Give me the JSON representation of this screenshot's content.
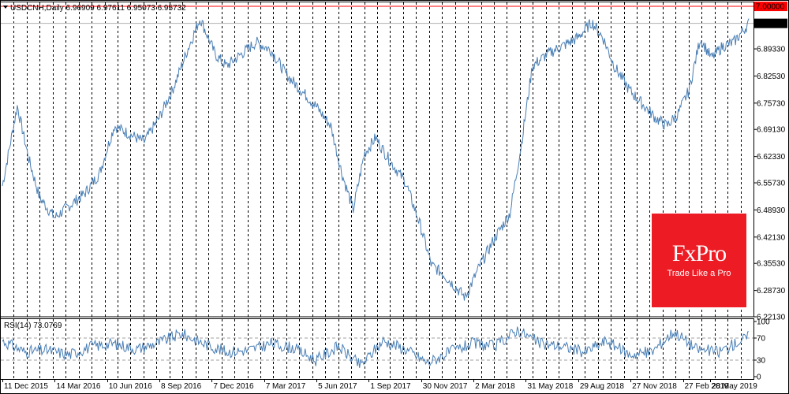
{
  "chart_data": [
    {
      "type": "line",
      "title": "USDCNH,Daily  6.96909 6.97611 6.95073 6.95732",
      "symbol": "USDCNH,Daily",
      "ohlc": [
        "6.96909",
        "6.97611",
        "6.95073",
        "6.95732"
      ],
      "line_color": "#4a7fb5",
      "ylim": [
        6.2213,
        7.01
      ],
      "y_ticks": [
        "6.95732",
        "6.89330",
        "6.82530",
        "6.75730",
        "6.69130",
        "6.62330",
        "6.55730",
        "6.48930",
        "6.42130",
        "6.35530",
        "6.28730",
        "6.22130"
      ],
      "current_price": "6.95732",
      "level_line": {
        "value": 7.0,
        "label": "7.00000",
        "color": "#ff0000"
      },
      "x_tick_labels": [
        "11 Dec 2015",
        "14 Mar 2016",
        "10 Jun 2016",
        "8 Sep 2016",
        "7 Dec 2016",
        "7 Mar 2017",
        "5 Jun 2017",
        "1 Sep 2017",
        "30 Nov 2017",
        "2 Mar 2018",
        "31 May 2018",
        "29 Aug 2018",
        "27 Nov 2018",
        "27 Feb 2019",
        "28 May 2019"
      ],
      "x": [
        0,
        0.02,
        0.035,
        0.05,
        0.07,
        0.09,
        0.11,
        0.13,
        0.15,
        0.17,
        0.19,
        0.21,
        0.23,
        0.25,
        0.265,
        0.285,
        0.3,
        0.32,
        0.34,
        0.36,
        0.38,
        0.4,
        0.42,
        0.44,
        0.455,
        0.47,
        0.485,
        0.5,
        0.52,
        0.54,
        0.56,
        0.575,
        0.59,
        0.605,
        0.62,
        0.64,
        0.66,
        0.68,
        0.695,
        0.71,
        0.73,
        0.75,
        0.77,
        0.79,
        0.805,
        0.82,
        0.84,
        0.86,
        0.875,
        0.89,
        0.905,
        0.92,
        0.935,
        0.95,
        0.965,
        0.98,
        1.0
      ],
      "values": [
        6.55,
        6.75,
        6.62,
        6.52,
        6.47,
        6.5,
        6.53,
        6.58,
        6.7,
        6.68,
        6.66,
        6.72,
        6.8,
        6.9,
        6.97,
        6.88,
        6.85,
        6.88,
        6.91,
        6.89,
        6.83,
        6.79,
        6.75,
        6.7,
        6.58,
        6.49,
        6.63,
        6.67,
        6.61,
        6.56,
        6.45,
        6.35,
        6.33,
        6.3,
        6.27,
        6.35,
        6.42,
        6.48,
        6.65,
        6.85,
        6.88,
        6.9,
        6.92,
        6.96,
        6.92,
        6.85,
        6.79,
        6.75,
        6.72,
        6.7,
        6.73,
        6.79,
        6.92,
        6.87,
        6.9,
        6.91,
        6.957
      ],
      "grid": "vertical dashed"
    },
    {
      "type": "line",
      "title": "RSI(14) 73.0769",
      "indicator": "RSI(14)",
      "last_value": "73.0769",
      "line_color": "#4a7fb5",
      "ylim": [
        0,
        100
      ],
      "y_ticks": [
        "100",
        "70",
        "30",
        "0"
      ],
      "levels": [
        70,
        30
      ],
      "x": [
        0,
        0.03,
        0.06,
        0.09,
        0.12,
        0.15,
        0.18,
        0.21,
        0.24,
        0.27,
        0.3,
        0.33,
        0.36,
        0.39,
        0.42,
        0.45,
        0.48,
        0.51,
        0.54,
        0.57,
        0.6,
        0.63,
        0.66,
        0.69,
        0.72,
        0.75,
        0.78,
        0.81,
        0.84,
        0.87,
        0.9,
        0.93,
        0.96,
        1.0
      ],
      "values": [
        65,
        45,
        48,
        40,
        55,
        60,
        50,
        62,
        78,
        60,
        45,
        48,
        60,
        52,
        30,
        55,
        20,
        65,
        50,
        25,
        45,
        60,
        55,
        85,
        60,
        55,
        45,
        65,
        40,
        45,
        82,
        50,
        45,
        73
      ]
    }
  ],
  "logo": {
    "brand": "FxPro",
    "tagline": "Trade Like a Pro",
    "color": "#ed1c24"
  }
}
